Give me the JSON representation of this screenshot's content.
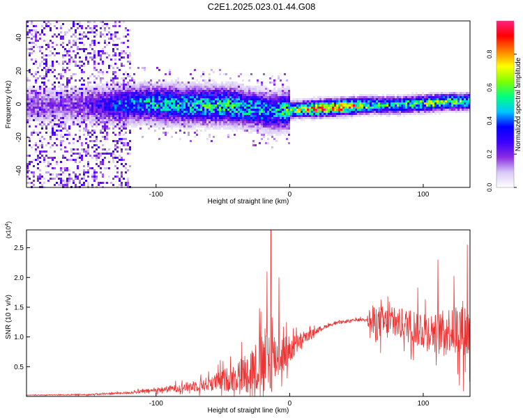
{
  "title": "C2E1.2025.023.01.44.G08",
  "chart_data": [
    {
      "type": "heatmap",
      "xlabel": "Height of straight line (km)",
      "ylabel": "Frequency (Hz)",
      "xlim": [
        -197,
        135
      ],
      "ylim": [
        -50,
        50
      ],
      "xticks": [
        -100,
        0,
        100
      ],
      "yticks": [
        -40,
        -20,
        0,
        20,
        40
      ],
      "colorbar": {
        "label": "Normalized spectral amplitude",
        "range": [
          0.0,
          1.0
        ],
        "ticks": [
          "0.0",
          "0.2",
          "0.4",
          "0.6",
          "0.8"
        ],
        "colormap": [
          "#ffffff",
          "#d8c8f8",
          "#8a2be2",
          "#3b00ff",
          "#0000ff",
          "#00c8ff",
          "#00ff80",
          "#80ff00",
          "#ffff00",
          "#ff8000",
          "#ff0000",
          "#ff2080"
        ]
      },
      "ridge": {
        "description_points_x": [
          -197,
          -160,
          -130,
          -110,
          -80,
          -50,
          -30,
          -15,
          0,
          20,
          40,
          60,
          80,
          100,
          120,
          135
        ],
        "center_freq_hz": [
          0,
          0,
          0,
          1,
          0,
          0,
          -2,
          -4,
          -3,
          -2,
          -1,
          0,
          0,
          1,
          2,
          2
        ],
        "peak_amplitude": [
          0.2,
          0.2,
          0.4,
          0.5,
          0.55,
          0.6,
          0.55,
          0.5,
          0.6,
          0.95,
          0.95,
          0.65,
          0.6,
          0.7,
          0.7,
          0.6
        ]
      },
      "noise_region_x": [
        -197,
        -120
      ]
    },
    {
      "type": "line",
      "xlabel": "Height of straight line (km)",
      "ylabel": "SNR (10 * v/v)",
      "y_multiplier": "(x10^4)",
      "xlim": [
        -197,
        135
      ],
      "ylim": [
        0,
        2.8
      ],
      "xticks": [
        -100,
        0,
        100
      ],
      "yticks": [
        0.5,
        1.0,
        1.5,
        2.0,
        2.5
      ],
      "color": "#ee3333",
      "series": [
        {
          "x": [
            -197,
            -150,
            -120,
            -100,
            -80,
            -60,
            -40,
            -25,
            -15,
            -10,
            0,
            10,
            20,
            30,
            40,
            50,
            58,
            60,
            70,
            80,
            90,
            100,
            110,
            120,
            130,
            135
          ],
          "base": [
            0.02,
            0.03,
            0.06,
            0.1,
            0.14,
            0.2,
            0.3,
            0.45,
            0.55,
            0.62,
            0.75,
            0.95,
            1.1,
            1.2,
            1.25,
            1.28,
            1.3,
            1.2,
            1.2,
            1.2,
            1.15,
            1.1,
            1.05,
            1.1,
            1.05,
            1.0
          ],
          "spread": [
            0.01,
            0.02,
            0.04,
            0.08,
            0.15,
            0.25,
            0.5,
            0.9,
            1.3,
            0.8,
            0.5,
            0.2,
            0.1,
            0.05,
            0.05,
            0.05,
            0.05,
            0.6,
            0.6,
            0.5,
            0.6,
            0.7,
            0.6,
            0.8,
            1.1,
            0.9
          ]
        }
      ],
      "notable_peaks": [
        {
          "x": -14,
          "y": 2.8
        },
        {
          "x": -17,
          "y": 2.1
        },
        {
          "x": -8,
          "y": 2.0
        },
        {
          "x": 111,
          "y": 2.3
        },
        {
          "x": 133,
          "y": 2.55
        }
      ]
    }
  ]
}
